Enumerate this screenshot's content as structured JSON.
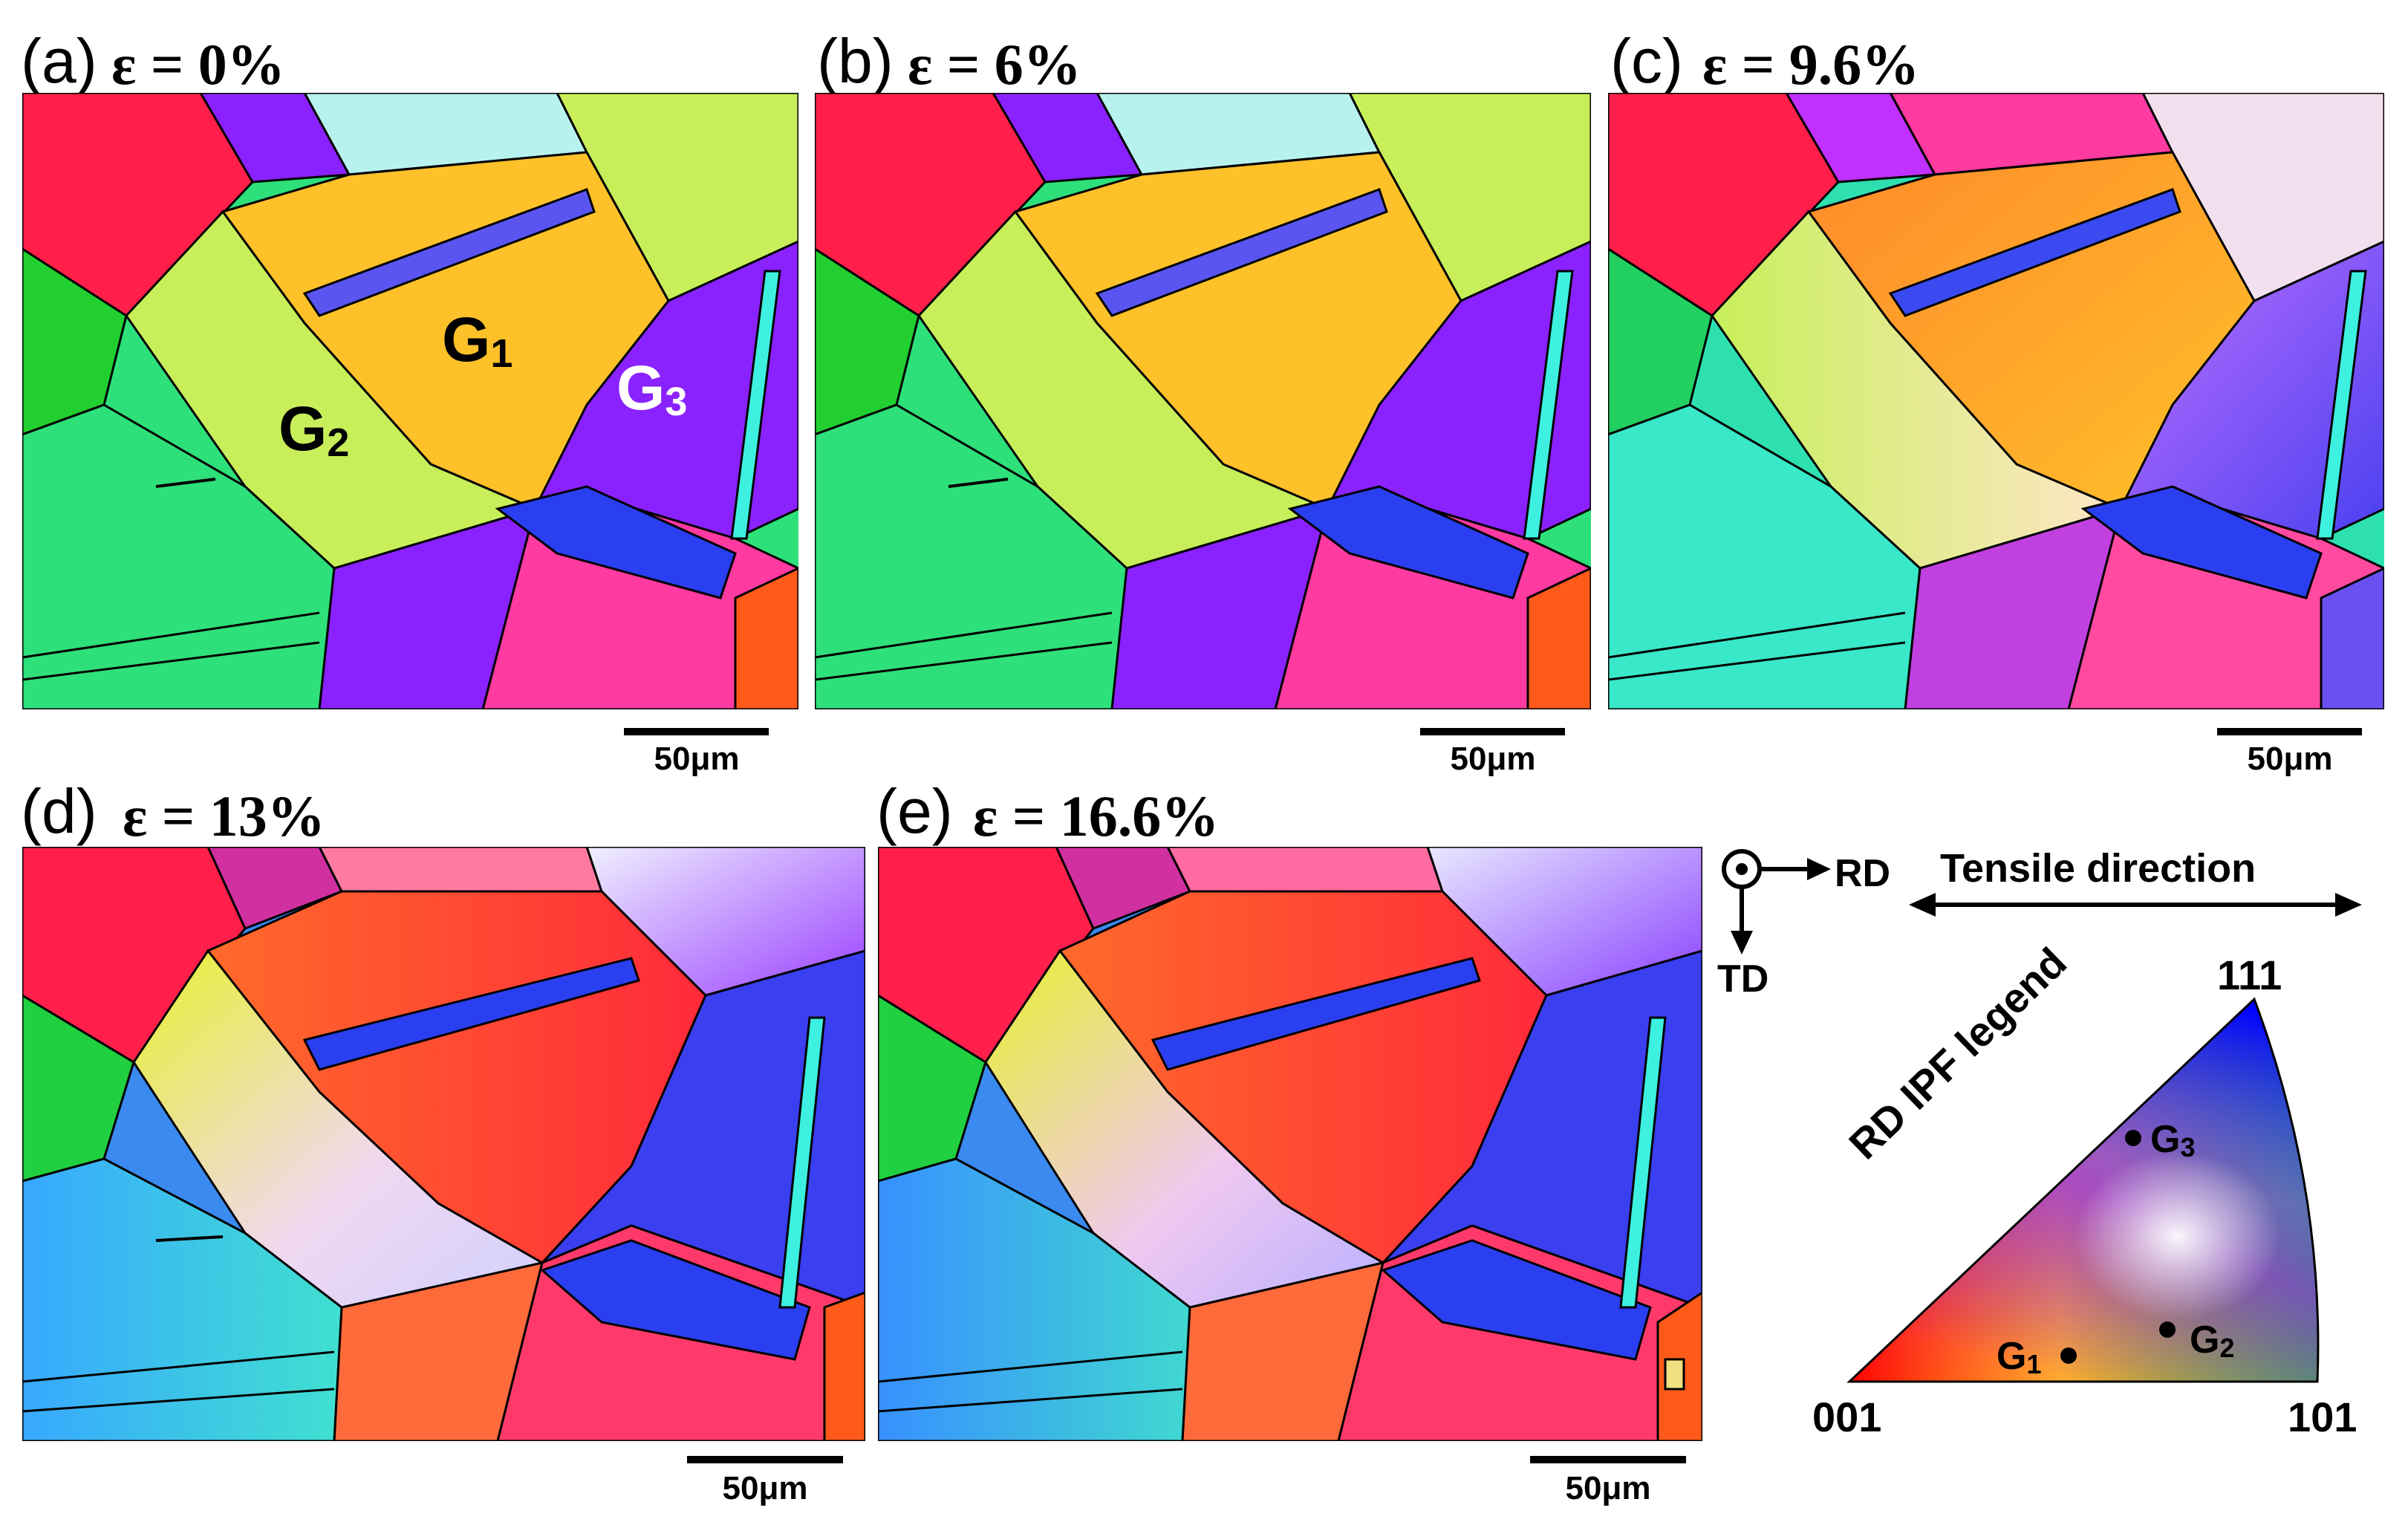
{
  "panels": [
    {
      "label": "(a)",
      "strain": "ε = 0%"
    },
    {
      "label": "(b)",
      "strain": "ε = 6%"
    },
    {
      "label": "(c)",
      "strain": "ε = 9.6%"
    },
    {
      "label": "(d)",
      "strain": "ε = 13%"
    },
    {
      "label": "(e)",
      "strain": "ε = 16.6%"
    }
  ],
  "scale_bar": "50μm",
  "grains": {
    "g1": {
      "letter": "G",
      "sub": "1"
    },
    "g2": {
      "letter": "G",
      "sub": "2"
    },
    "g3": {
      "letter": "G",
      "sub": "3"
    }
  },
  "axes": {
    "rd": "RD",
    "td": "TD",
    "tensile": "Tensile direction"
  },
  "ipf": {
    "title": "RD IPF legend",
    "corner_001": "001",
    "corner_101": "101",
    "corner_111": "111"
  },
  "colors": {
    "red": "#ff1f4a",
    "yellow": "#ffc12a",
    "lime": "#c8ef5a",
    "green": "#2ee07a",
    "blue": "#2a3ff0",
    "purple": "#8a22ff",
    "magenta": "#ff3aa0",
    "cyan": "#3ef0e0",
    "paleblue": "#b8f2ee"
  }
}
